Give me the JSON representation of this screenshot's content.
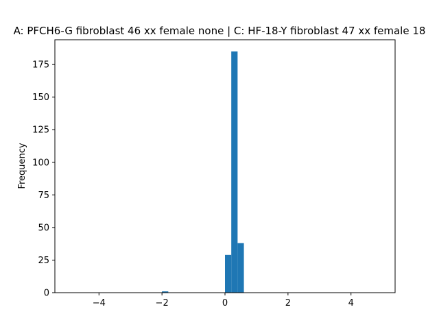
{
  "chart_data": {
    "type": "bar",
    "title": "A: PFCH6-G fibroblast 46 xx female none | C: HF-18-Y fibroblast 47 xx female 18",
    "xlabel": "",
    "ylabel": "Frequency",
    "xlim": [
      -5.4,
      5.4
    ],
    "ylim": [
      0,
      194
    ],
    "x_ticks": [
      -4,
      -2,
      0,
      2,
      4
    ],
    "y_ticks": [
      0,
      25,
      50,
      75,
      100,
      125,
      150,
      175
    ],
    "bin_width": 0.2,
    "bins": [
      {
        "x0": -2.0,
        "x1": -1.8,
        "count": 1
      },
      {
        "x0": 0.0,
        "x1": 0.2,
        "count": 29
      },
      {
        "x0": 0.2,
        "x1": 0.4,
        "count": 185
      },
      {
        "x0": 0.4,
        "x1": 0.6,
        "count": 38
      }
    ],
    "bar_color": "#1f77b4",
    "grid": false
  }
}
